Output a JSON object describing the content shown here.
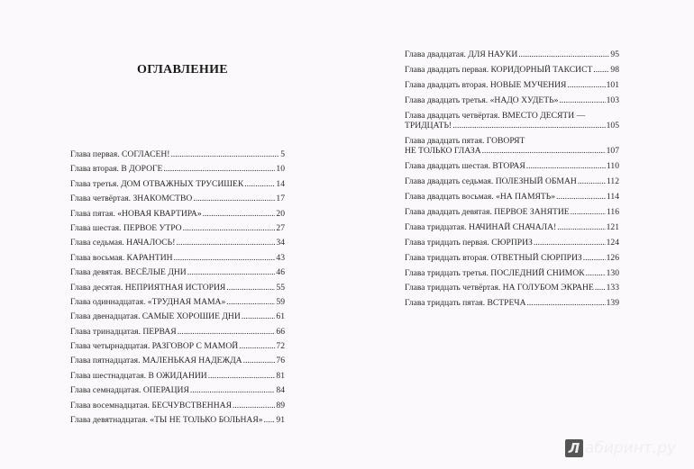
{
  "title": "ОГЛАВЛЕНИЕ",
  "left": [
    {
      "title": "Глава первая. СОГЛАСЕН!",
      "page": "5"
    },
    {
      "title": "Глава вторая. В ДОРОГЕ",
      "page": "10"
    },
    {
      "title": "Глава третья. ДОМ ОТВАЖНЫХ ТРУСИШЕК",
      "page": "14"
    },
    {
      "title": "Глава четвёртая. ЗНАКОМСТВО",
      "page": "17"
    },
    {
      "title": "Глава пятая. «НОВАЯ КВАРТИРА»",
      "page": "20"
    },
    {
      "title": "Глава шестая. ПЕРВОЕ УТРО",
      "page": "27"
    },
    {
      "title": "Глава седьмая. НАЧАЛОСЬ!",
      "page": "34"
    },
    {
      "title": "Глава восьмая. КАРАНТИН",
      "page": "43"
    },
    {
      "title": "Глава девятая. ВЕСЁЛЫЕ ДНИ",
      "page": "46"
    },
    {
      "title": "Глава десятая. НЕПРИЯТНАЯ ИСТОРИЯ",
      "page": "55"
    },
    {
      "title": "Глава одиннадцатая. «ТРУДНАЯ МАМА»",
      "page": "59"
    },
    {
      "title": "Глава двенадцатая. САМЫЕ ХОРОШИЕ ДНИ",
      "page": "61"
    },
    {
      "title": "Глава тринадцатая. ПЕРВАЯ",
      "page": "66"
    },
    {
      "title": "Глава четырнадцатая. РАЗГОВОР С МАМОЙ",
      "page": "72"
    },
    {
      "title": "Глава пятнадцатая. МАЛЕНЬКАЯ НАДЕЖДА",
      "page": "76"
    },
    {
      "title": "Глава шестнадцатая. В ОЖИДАНИИ",
      "page": "81"
    },
    {
      "title": "Глава семнадцатая. ОПЕРАЦИЯ",
      "page": "84"
    },
    {
      "title": "Глава восемнадцатая. БЕСЧУВСТВЕННАЯ",
      "page": "89"
    },
    {
      "title": "Глава девятнадцатая. «ТЫ НЕ ТОЛЬКО БОЛЬНАЯ»",
      "page": "91"
    }
  ],
  "right": [
    {
      "title": "Глава двадцатая. ДЛЯ НАУКИ",
      "page": "95"
    },
    {
      "title": "Глава двадцать первая. КОРИДОРНЫЙ ТАКСИСТ",
      "page": "98"
    },
    {
      "title": "Глава двадцать вторая. НОВЫЕ МУЧЕНИЯ",
      "page": "101"
    },
    {
      "title": "Глава двадцать третья. «НАДО ХУДЕТЬ»",
      "page": "103"
    },
    {
      "first": "Глава двадцать четвёртая. ВМЕСТО ДЕСЯТИ —",
      "title": "ТРИДЦАТЬ!",
      "page": "105"
    },
    {
      "first": "Глава двадцать пятая. ГОВОРЯТ",
      "title": "НЕ ТОЛЬКО ГЛАЗА",
      "page": "107"
    },
    {
      "title": "Глава двадцать шестая. ВТОРАЯ",
      "page": "110"
    },
    {
      "title": "Глава двадцать седьмая. ПОЛЕЗНЫЙ ОБМАН",
      "page": "112"
    },
    {
      "title": "Глава двадцать восьмая. «НА ПАМЯТЬ»",
      "page": "114"
    },
    {
      "title": "Глава двадцать девятая. ПЕРВОЕ ЗАНЯТИЕ",
      "page": "116"
    },
    {
      "title": "Глава тридцатая. НАЧИНАЙ СНАЧАЛА!",
      "page": "121"
    },
    {
      "title": "Глава тридцать первая. СЮРПРИЗ",
      "page": "124"
    },
    {
      "title": "Глава тридцать вторая. ОТВЕТНЫЙ СЮРПРИЗ",
      "page": "126"
    },
    {
      "title": "Глава тридцать третья. ПОСЛЕДНИЙ СНИМОК",
      "page": "130"
    },
    {
      "title": "Глава тридцать четвёртая. НА ГОЛУБОМ ЭКРАНЕ",
      "page": "133"
    },
    {
      "title": "Глава тридцать пятая. ВСТРЕЧА",
      "page": "139"
    }
  ],
  "watermark": {
    "logo": "Л",
    "text": "абиринт.ру",
    "icon": "labirint-logo-icon"
  }
}
